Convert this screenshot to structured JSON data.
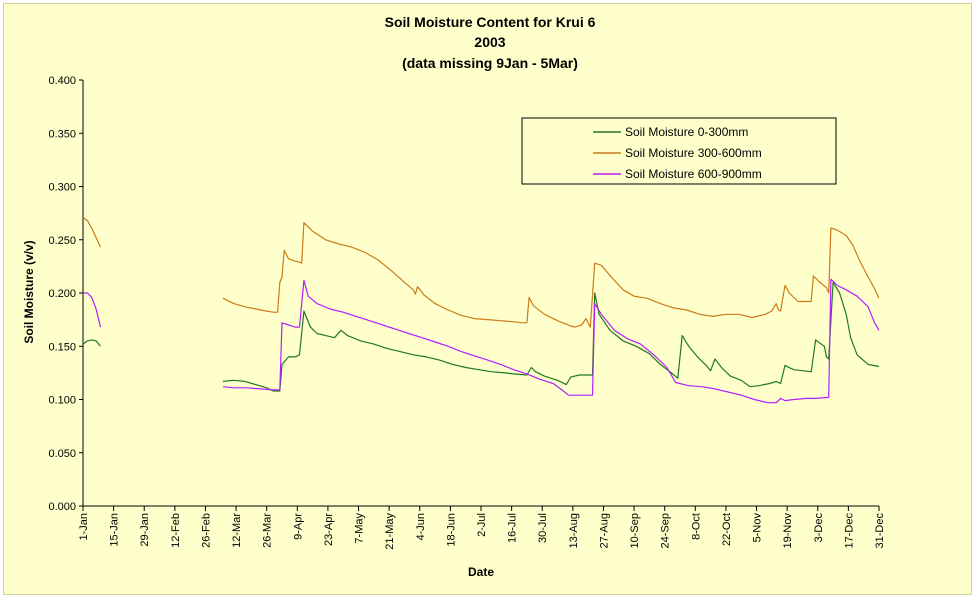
{
  "chart_data": {
    "type": "line",
    "title": "Soil Moisture Content for Krui 6",
    "subtitle": "2003",
    "note": "(data missing  9Jan - 5Mar)",
    "xlabel": "Date",
    "ylabel": "Soil Moisture (v/v)",
    "ylim": [
      0,
      0.4
    ],
    "yticks": [
      "0.000",
      "0.050",
      "0.100",
      "0.150",
      "0.200",
      "0.250",
      "0.300",
      "0.350",
      "0.400"
    ],
    "xlim": [
      1,
      365
    ],
    "xticks": [
      {
        "day": 1,
        "label": "1-Jan"
      },
      {
        "day": 15,
        "label": "15-Jan"
      },
      {
        "day": 29,
        "label": "29-Jan"
      },
      {
        "day": 43,
        "label": "12-Feb"
      },
      {
        "day": 57,
        "label": "26-Feb"
      },
      {
        "day": 71,
        "label": "12-Mar"
      },
      {
        "day": 85,
        "label": "26-Mar"
      },
      {
        "day": 99,
        "label": "9-Apr"
      },
      {
        "day": 113,
        "label": "23-Apr"
      },
      {
        "day": 127,
        "label": "7-May"
      },
      {
        "day": 141,
        "label": "21-May"
      },
      {
        "day": 155,
        "label": "4-Jun"
      },
      {
        "day": 169,
        "label": "18-Jun"
      },
      {
        "day": 183,
        "label": "2-Jul"
      },
      {
        "day": 197,
        "label": "16-Jul"
      },
      {
        "day": 211,
        "label": "30-Jul"
      },
      {
        "day": 225,
        "label": "13-Aug"
      },
      {
        "day": 239,
        "label": "27-Aug"
      },
      {
        "day": 253,
        "label": "10-Sep"
      },
      {
        "day": 267,
        "label": "24-Sep"
      },
      {
        "day": 281,
        "label": "8-Oct"
      },
      {
        "day": 295,
        "label": "22-Oct"
      },
      {
        "day": 309,
        "label": "5-Nov"
      },
      {
        "day": 323,
        "label": "19-Nov"
      },
      {
        "day": 337,
        "label": "3-Dec"
      },
      {
        "day": 351,
        "label": "17-Dec"
      },
      {
        "day": 365,
        "label": "31-Dec"
      }
    ],
    "grid": false,
    "legend_position": "top-right",
    "series": [
      {
        "name": "Soil Moisture 0-300mm",
        "color": "#1f7a1f",
        "segments": [
          [
            [
              1,
              0.152
            ],
            [
              3,
              0.155
            ],
            [
              5,
              0.156
            ],
            [
              7,
              0.155
            ],
            [
              9,
              0.15
            ]
          ],
          [
            [
              65,
              0.117
            ],
            [
              70,
              0.118
            ],
            [
              75,
              0.117
            ],
            [
              80,
              0.114
            ],
            [
              85,
              0.111
            ],
            [
              88,
              0.108
            ],
            [
              91,
              0.108
            ],
            [
              92,
              0.133
            ],
            [
              95,
              0.14
            ],
            [
              98,
              0.14
            ],
            [
              100,
              0.142
            ],
            [
              102,
              0.183
            ],
            [
              105,
              0.168
            ],
            [
              108,
              0.162
            ],
            [
              112,
              0.16
            ],
            [
              116,
              0.158
            ],
            [
              119,
              0.165
            ],
            [
              122,
              0.16
            ],
            [
              128,
              0.155
            ],
            [
              134,
              0.152
            ],
            [
              140,
              0.148
            ],
            [
              146,
              0.145
            ],
            [
              152,
              0.142
            ],
            [
              158,
              0.14
            ],
            [
              164,
              0.137
            ],
            [
              170,
              0.133
            ],
            [
              176,
              0.13
            ],
            [
              182,
              0.128
            ],
            [
              188,
              0.126
            ],
            [
              194,
              0.125
            ],
            [
              198,
              0.124
            ],
            [
              204,
              0.123
            ],
            [
              206,
              0.13
            ],
            [
              208,
              0.126
            ],
            [
              212,
              0.122
            ],
            [
              218,
              0.118
            ],
            [
              222,
              0.114
            ],
            [
              224,
              0.121
            ],
            [
              228,
              0.123
            ],
            [
              234,
              0.123
            ],
            [
              235,
              0.2
            ],
            [
              237,
              0.18
            ],
            [
              242,
              0.165
            ],
            [
              248,
              0.155
            ],
            [
              254,
              0.15
            ],
            [
              260,
              0.143
            ],
            [
              265,
              0.133
            ],
            [
              270,
              0.125
            ],
            [
              273,
              0.12
            ],
            [
              275,
              0.16
            ],
            [
              278,
              0.15
            ],
            [
              282,
              0.14
            ],
            [
              286,
              0.132
            ],
            [
              288,
              0.127
            ],
            [
              290,
              0.138
            ],
            [
              293,
              0.13
            ],
            [
              297,
              0.122
            ],
            [
              302,
              0.118
            ],
            [
              306,
              0.112
            ],
            [
              310,
              0.113
            ],
            [
              315,
              0.115
            ],
            [
              318,
              0.117
            ],
            [
              320,
              0.115
            ],
            [
              322,
              0.132
            ],
            [
              326,
              0.128
            ],
            [
              330,
              0.127
            ],
            [
              334,
              0.126
            ],
            [
              336,
              0.156
            ],
            [
              340,
              0.15
            ],
            [
              341,
              0.14
            ],
            [
              342,
              0.138
            ],
            [
              344,
              0.21
            ],
            [
              347,
              0.2
            ],
            [
              350,
              0.18
            ],
            [
              352,
              0.158
            ],
            [
              355,
              0.142
            ],
            [
              360,
              0.133
            ],
            [
              365,
              0.131
            ]
          ]
        ]
      },
      {
        "name": "Soil Moisture 300-600mm",
        "color": "#cc7a1a",
        "segments": [
          [
            [
              1,
              0.271
            ],
            [
              3,
              0.268
            ],
            [
              5,
              0.261
            ],
            [
              7,
              0.252
            ],
            [
              9,
              0.243
            ]
          ],
          [
            [
              65,
              0.195
            ],
            [
              70,
              0.19
            ],
            [
              75,
              0.187
            ],
            [
              80,
              0.185
            ],
            [
              85,
              0.183
            ],
            [
              88,
              0.182
            ],
            [
              90,
              0.182
            ],
            [
              91,
              0.21
            ],
            [
              92,
              0.215
            ],
            [
              93,
              0.24
            ],
            [
              95,
              0.232
            ],
            [
              98,
              0.23
            ],
            [
              100,
              0.229
            ],
            [
              101,
              0.228
            ],
            [
              102,
              0.266
            ],
            [
              106,
              0.258
            ],
            [
              112,
              0.25
            ],
            [
              118,
              0.246
            ],
            [
              124,
              0.243
            ],
            [
              130,
              0.238
            ],
            [
              136,
              0.231
            ],
            [
              142,
              0.221
            ],
            [
              148,
              0.21
            ],
            [
              152,
              0.203
            ],
            [
              153,
              0.199
            ],
            [
              154,
              0.206
            ],
            [
              157,
              0.198
            ],
            [
              162,
              0.19
            ],
            [
              168,
              0.184
            ],
            [
              174,
              0.179
            ],
            [
              180,
              0.176
            ],
            [
              186,
              0.175
            ],
            [
              192,
              0.174
            ],
            [
              198,
              0.173
            ],
            [
              202,
              0.172
            ],
            [
              204,
              0.172
            ],
            [
              205,
              0.196
            ],
            [
              207,
              0.188
            ],
            [
              212,
              0.18
            ],
            [
              218,
              0.174
            ],
            [
              224,
              0.169
            ],
            [
              226,
              0.168
            ],
            [
              229,
              0.17
            ],
            [
              231,
              0.176
            ],
            [
              233,
              0.168
            ],
            [
              235,
              0.228
            ],
            [
              238,
              0.226
            ],
            [
              243,
              0.214
            ],
            [
              248,
              0.203
            ],
            [
              253,
              0.197
            ],
            [
              259,
              0.195
            ],
            [
              265,
              0.19
            ],
            [
              271,
              0.186
            ],
            [
              277,
              0.184
            ],
            [
              283,
              0.18
            ],
            [
              289,
              0.178
            ],
            [
              295,
              0.18
            ],
            [
              301,
              0.18
            ],
            [
              307,
              0.177
            ],
            [
              313,
              0.18
            ],
            [
              316,
              0.183
            ],
            [
              318,
              0.19
            ],
            [
              319,
              0.184
            ],
            [
              320,
              0.183
            ],
            [
              322,
              0.207
            ],
            [
              324,
              0.2
            ],
            [
              328,
              0.192
            ],
            [
              334,
              0.192
            ],
            [
              335,
              0.216
            ],
            [
              338,
              0.21
            ],
            [
              341,
              0.205
            ],
            [
              342,
              0.2
            ],
            [
              343,
              0.261
            ],
            [
              346,
              0.259
            ],
            [
              350,
              0.254
            ],
            [
              353,
              0.245
            ],
            [
              356,
              0.231
            ],
            [
              360,
              0.215
            ],
            [
              363,
              0.204
            ],
            [
              365,
              0.195
            ]
          ]
        ]
      },
      {
        "name": "Soil Moisture 600-900mm",
        "color": "#b41eff",
        "segments": [
          [
            [
              1,
              0.2
            ],
            [
              3,
              0.2
            ],
            [
              5,
              0.196
            ],
            [
              7,
              0.185
            ],
            [
              9,
              0.168
            ]
          ],
          [
            [
              65,
              0.112
            ],
            [
              70,
              0.111
            ],
            [
              76,
              0.111
            ],
            [
              82,
              0.11
            ],
            [
              88,
              0.109
            ],
            [
              91,
              0.109
            ],
            [
              92,
              0.172
            ],
            [
              95,
              0.17
            ],
            [
              98,
              0.168
            ],
            [
              100,
              0.168
            ],
            [
              102,
              0.212
            ],
            [
              104,
              0.197
            ],
            [
              108,
              0.19
            ],
            [
              114,
              0.185
            ],
            [
              120,
              0.182
            ],
            [
              126,
              0.178
            ],
            [
              132,
              0.174
            ],
            [
              138,
              0.17
            ],
            [
              144,
              0.166
            ],
            [
              150,
              0.162
            ],
            [
              156,
              0.158
            ],
            [
              162,
              0.154
            ],
            [
              168,
              0.15
            ],
            [
              174,
              0.145
            ],
            [
              180,
              0.141
            ],
            [
              186,
              0.137
            ],
            [
              192,
              0.133
            ],
            [
              198,
              0.128
            ],
            [
              204,
              0.124
            ],
            [
              210,
              0.119
            ],
            [
              216,
              0.115
            ],
            [
              220,
              0.109
            ],
            [
              223,
              0.104
            ],
            [
              228,
              0.104
            ],
            [
              234,
              0.104
            ],
            [
              235,
              0.19
            ],
            [
              238,
              0.18
            ],
            [
              244,
              0.165
            ],
            [
              250,
              0.157
            ],
            [
              256,
              0.152
            ],
            [
              262,
              0.142
            ],
            [
              268,
              0.13
            ],
            [
              272,
              0.116
            ],
            [
              278,
              0.113
            ],
            [
              284,
              0.112
            ],
            [
              290,
              0.11
            ],
            [
              296,
              0.107
            ],
            [
              302,
              0.104
            ],
            [
              308,
              0.1
            ],
            [
              314,
              0.097
            ],
            [
              318,
              0.097
            ],
            [
              320,
              0.101
            ],
            [
              322,
              0.099
            ],
            [
              326,
              0.1
            ],
            [
              332,
              0.101
            ],
            [
              336,
              0.101
            ],
            [
              342,
              0.102
            ],
            [
              343,
              0.213
            ],
            [
              346,
              0.207
            ],
            [
              350,
              0.203
            ],
            [
              355,
              0.197
            ],
            [
              360,
              0.187
            ],
            [
              363,
              0.172
            ],
            [
              365,
              0.165
            ]
          ]
        ]
      }
    ]
  }
}
